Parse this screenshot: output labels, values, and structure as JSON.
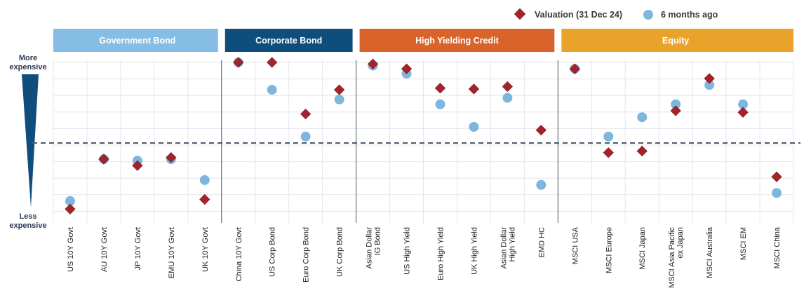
{
  "chart_data": {
    "type": "scatter",
    "legend": [
      {
        "label": "Valuation (31 Dec 24)",
        "color": "#a3232a",
        "marker": "diamond"
      },
      {
        "label": "6 months ago",
        "color": "#7fb6de",
        "marker": "circle"
      }
    ],
    "legend_position": "top-right",
    "y_axis_top_label": [
      "More",
      "expensive"
    ],
    "y_axis_bottom_label": [
      "Less",
      "expensive"
    ],
    "y_range": [
      0,
      10
    ],
    "neutral_line": 5,
    "grid": true,
    "groups": [
      {
        "label": "Government Bond",
        "color": "#86bde5",
        "start": 0,
        "count": 5
      },
      {
        "label": "Corporate Bond",
        "color": "#0f4d7d",
        "start": 5,
        "count": 4
      },
      {
        "label": "High Yielding Credit",
        "color": "#d9632b",
        "start": 9,
        "count": 6
      },
      {
        "label": "Equity",
        "color": "#e9a32b",
        "start": 15,
        "count": 7
      }
    ],
    "categories": [
      "US 10Y Govt",
      "AU 10Y Govt",
      "JP 10Y Govt",
      "EMU 10Y Govt",
      "UK 10Y Govt",
      "China 10Y Govt",
      "US Corp Bond",
      "Euro Corp Bond",
      "UK Corp Bond",
      "Asian Dollar\nIG Bond",
      "US High Yield",
      "Euro High Yield",
      "UK High Yield",
      "Asian Dollar\nHigh Yield",
      "EMD HC",
      "MSCI USA",
      "MSCI Europe",
      "MSCI Japan",
      "MSCI Asia Pacific\nex Japan",
      "MSCI Australia",
      "MSCI EM",
      "MSCI China"
    ],
    "series": [
      {
        "name": "Valuation (31 Dec 24)",
        "values": [
          0.9,
          4.0,
          3.6,
          4.1,
          1.5,
          10.0,
          10.0,
          6.8,
          8.3,
          9.9,
          9.6,
          8.4,
          8.35,
          8.5,
          5.8,
          9.6,
          4.4,
          4.5,
          7.0,
          9.0,
          6.9,
          2.9
        ]
      },
      {
        "name": "6 months ago",
        "values": [
          1.4,
          4.0,
          3.9,
          4.0,
          2.7,
          10.0,
          8.3,
          5.4,
          7.7,
          9.8,
          9.3,
          7.4,
          6.0,
          7.8,
          2.4,
          9.6,
          5.4,
          6.6,
          7.4,
          8.6,
          7.4,
          1.9
        ]
      }
    ]
  }
}
